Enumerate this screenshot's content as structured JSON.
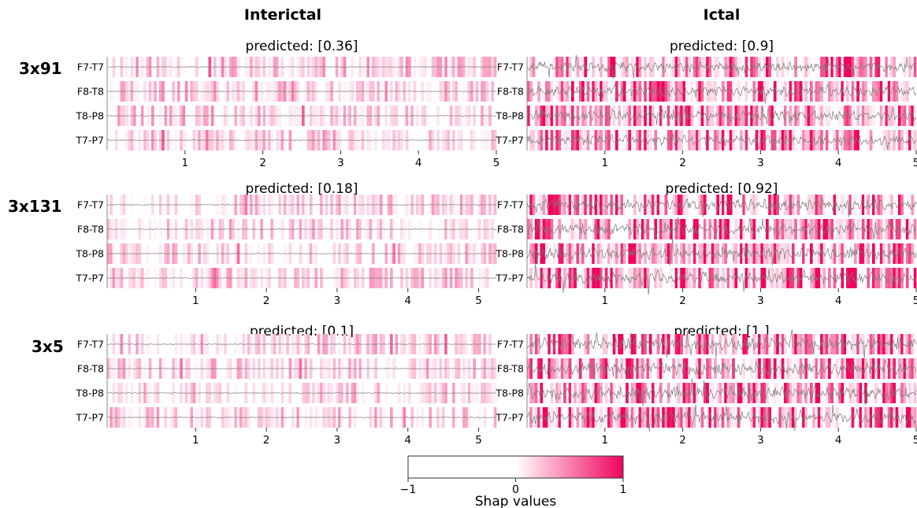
{
  "figure": {
    "column_titles": [
      "Interictal",
      "Ictal"
    ],
    "colorbar": {
      "label": "Shap values",
      "ticks": [
        -1,
        0,
        1
      ],
      "tick_labels": [
        "−1",
        "0",
        "1"
      ],
      "colormap": [
        "#ffffff",
        "#f0035c"
      ]
    },
    "signal_color": "#7a7a7a",
    "axis_color": "#888888"
  },
  "chart_data": [
    {
      "type": "heatmap",
      "model": "3x91",
      "condition": "Interictal",
      "title": "predicted: [0.36]",
      "channels": [
        "F7-T7",
        "F8-T8",
        "T8-P8",
        "T7-P7"
      ],
      "xticks": [
        1,
        2,
        3,
        4,
        5
      ],
      "xlim": [
        0.0,
        5.0
      ],
      "value_range": [
        -1,
        1
      ],
      "signal_amplitude": 0.02,
      "shap_intensity": 0.22,
      "seed": 11
    },
    {
      "type": "heatmap",
      "model": "3x91",
      "condition": "Ictal",
      "title": "predicted: [0.9]",
      "channels": [
        "F7-T7",
        "F8-T8",
        "T8-P8",
        "T7-P7"
      ],
      "xticks": [
        1,
        2,
        3,
        4,
        5
      ],
      "xlim": [
        0.0,
        5.0
      ],
      "value_range": [
        -1,
        1
      ],
      "signal_amplitude": 0.3,
      "shap_intensity": 0.6,
      "seed": 23
    },
    {
      "type": "heatmap",
      "model": "3x131",
      "condition": "Interictal",
      "title": "predicted: [0.18]",
      "channels": [
        "F7-T7",
        "F8-T8",
        "T8-P8",
        "T7-P7"
      ],
      "xticks": [
        1,
        2,
        3,
        4,
        5
      ],
      "xlim": [
        -0.25,
        5.25
      ],
      "value_range": [
        -1,
        1
      ],
      "signal_amplitude": 0.02,
      "shap_intensity": 0.2,
      "seed": 37
    },
    {
      "type": "heatmap",
      "model": "3x131",
      "condition": "Ictal",
      "title": "predicted: [0.92]",
      "channels": [
        "F7-T7",
        "F8-T8",
        "T8-P8",
        "T7-P7"
      ],
      "xticks": [
        1,
        2,
        3,
        4,
        5
      ],
      "xlim": [
        0.0,
        5.0
      ],
      "value_range": [
        -1,
        1
      ],
      "signal_amplitude": 0.34,
      "shap_intensity": 0.65,
      "seed": 41
    },
    {
      "type": "heatmap",
      "model": "3x5",
      "condition": "Interictal",
      "title": "predicted: [0.1]",
      "channels": [
        "F7-T7",
        "F8-T8",
        "T8-P8",
        "T7-P7"
      ],
      "xticks": [
        1,
        2,
        3,
        4,
        5
      ],
      "xlim": [
        -0.25,
        5.25
      ],
      "value_range": [
        -1,
        1
      ],
      "signal_amplitude": 0.02,
      "shap_intensity": 0.2,
      "seed": 53
    },
    {
      "type": "heatmap",
      "model": "3x5",
      "condition": "Ictal",
      "title": "predicted: [1.]",
      "channels": [
        "F7-T7",
        "F8-T8",
        "T8-P8",
        "T7-P7"
      ],
      "xticks": [
        1,
        2,
        3,
        4,
        5
      ],
      "xlim": [
        0.0,
        5.0
      ],
      "value_range": [
        -1,
        1
      ],
      "signal_amplitude": 0.36,
      "shap_intensity": 0.7,
      "seed": 67
    }
  ]
}
